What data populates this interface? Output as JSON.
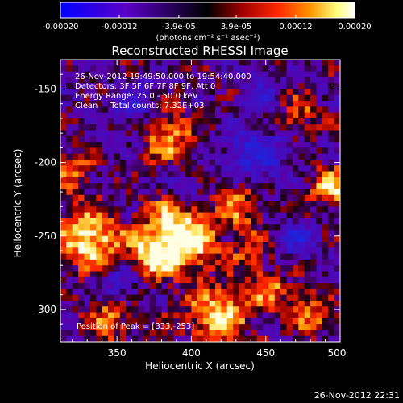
{
  "chart_data": {
    "type": "heatmap",
    "title": "Reconstructed RHESSI Image",
    "xlabel": "Heliocentric X (arcsec)",
    "ylabel": "Heliocentric Y (arcsec)",
    "xlim": [
      312,
      500
    ],
    "ylim": [
      -322,
      -130
    ],
    "x_ticks": [
      350,
      400,
      450,
      500
    ],
    "y_ticks": [
      -150,
      -200,
      -250,
      -300
    ],
    "colorbar": {
      "range": [
        -0.0002,
        0.0002
      ],
      "tick_labels": [
        "-0.00020",
        "-0.00012",
        "-3.9e-05",
        "3.9e-05",
        "0.00012",
        "0.00020"
      ],
      "tick_values": [
        -0.0002,
        -0.00012,
        -3.9e-05,
        3.9e-05,
        0.00012,
        0.0002
      ],
      "units_label": "(photons cm⁻² s⁻¹ asec⁻²)",
      "colors": [
        "#0000ff",
        "#5a00c8",
        "#000000",
        "#a00000",
        "#ff2800",
        "#ff9600",
        "#ffff80",
        "#ffffff"
      ]
    },
    "annotations": [
      "26-Nov-2012 19:49:50.000 to 19:54:40.000",
      "Detectors: 3F 5F 6F 7F 8F 9F, Att 0",
      "Energy Range: 25.0 - 50.0 keV",
      "Clean     Total counts: 7.32E+03"
    ],
    "peak_label": "Position of Peak = [333,-253]",
    "peak": [
      333,
      -253
    ],
    "hot_spots": [
      {
        "x": 330,
        "y": -250,
        "v": 1.0,
        "s": 14
      },
      {
        "x": 372,
        "y": -262,
        "v": 0.9,
        "s": 11
      },
      {
        "x": 386,
        "y": -242,
        "v": 0.85,
        "s": 14
      },
      {
        "x": 415,
        "y": -302,
        "v": 0.85,
        "s": 14
      },
      {
        "x": 492,
        "y": -215,
        "v": 0.8,
        "s": 10
      },
      {
        "x": 383,
        "y": -180,
        "v": 0.7,
        "s": 12
      },
      {
        "x": 430,
        "y": -225,
        "v": 0.6,
        "s": 12
      },
      {
        "x": 343,
        "y": -305,
        "v": 0.6,
        "s": 10
      },
      {
        "x": 450,
        "y": -285,
        "v": 0.6,
        "s": 10
      },
      {
        "x": 480,
        "y": -300,
        "v": 0.6,
        "s": 10
      },
      {
        "x": 470,
        "y": -165,
        "v": 0.5,
        "s": 9
      },
      {
        "x": 318,
        "y": -205,
        "v": 0.5,
        "s": 10
      },
      {
        "x": 400,
        "y": -255,
        "v": 0.6,
        "s": 12
      },
      {
        "x": 437,
        "y": -258,
        "v": 0.4,
        "s": 10
      }
    ],
    "cold_spots": [
      {
        "x": 440,
        "y": -195,
        "v": -0.7,
        "s": 14
      },
      {
        "x": 360,
        "y": -160,
        "v": -0.5,
        "s": 10
      },
      {
        "x": 350,
        "y": -280,
        "v": -0.5,
        "s": 10
      },
      {
        "x": 445,
        "y": -150,
        "v": -0.4,
        "s": 10
      },
      {
        "x": 470,
        "y": -250,
        "v": -0.5,
        "s": 10
      },
      {
        "x": 395,
        "y": -215,
        "v": -0.4,
        "s": 8
      }
    ]
  },
  "footer": {
    "timestamp": "26-Nov-2012 22:31"
  }
}
